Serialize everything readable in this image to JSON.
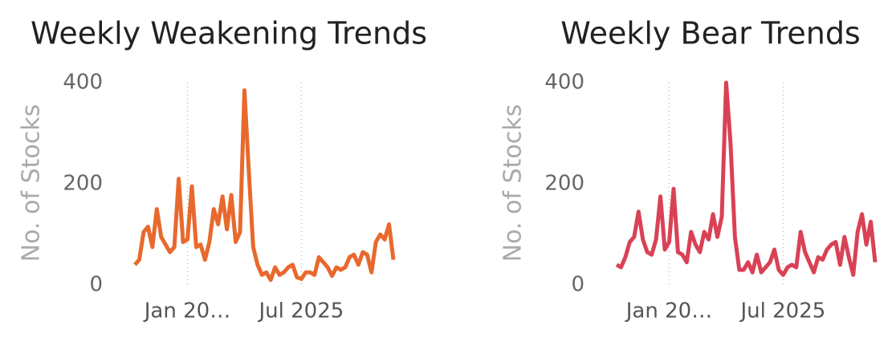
{
  "chart_data": [
    {
      "type": "line",
      "title": "Weekly Weakening Trends",
      "y_label": "No. of Stocks",
      "color": "#e8692d",
      "categories": [
        null,
        null,
        null,
        null,
        null,
        null,
        null,
        null,
        null,
        null,
        null,
        null,
        "Jan 20…",
        null,
        null,
        null,
        null,
        null,
        null,
        null,
        null,
        null,
        null,
        null,
        null,
        null,
        null,
        null,
        null,
        null,
        null,
        null,
        null,
        null,
        null,
        null,
        null,
        null,
        "Jul 2025",
        null,
        null,
        null,
        null,
        null,
        null,
        null,
        null,
        null,
        null,
        null,
        null,
        null,
        null,
        null,
        null,
        null,
        null,
        null,
        null,
        null
      ],
      "values": [
        40,
        50,
        105,
        115,
        75,
        150,
        95,
        80,
        65,
        75,
        210,
        85,
        90,
        195,
        75,
        80,
        50,
        85,
        150,
        120,
        175,
        110,
        178,
        85,
        105,
        385,
        225,
        75,
        40,
        20,
        25,
        10,
        35,
        20,
        25,
        35,
        40,
        15,
        12,
        25,
        25,
        20,
        55,
        45,
        35,
        18,
        35,
        30,
        35,
        55,
        60,
        40,
        65,
        60,
        25,
        85,
        100,
        90,
        120,
        50
      ],
      "ylim": [
        0,
        400
      ],
      "yticks": [
        0,
        200,
        400
      ],
      "xgrid": true
    },
    {
      "type": "line",
      "title": "Weekly Bear Trends",
      "y_label": "No. of Stocks",
      "color": "#d94255",
      "categories": [
        null,
        null,
        null,
        null,
        null,
        null,
        null,
        null,
        null,
        null,
        null,
        null,
        "Jan 20…",
        null,
        null,
        null,
        null,
        null,
        null,
        null,
        null,
        null,
        null,
        null,
        null,
        null,
        null,
        null,
        null,
        null,
        null,
        null,
        null,
        null,
        null,
        null,
        null,
        null,
        "Jul 2025",
        null,
        null,
        null,
        null,
        null,
        null,
        null,
        null,
        null,
        null,
        null,
        null,
        null,
        null,
        null,
        null,
        null,
        null,
        null,
        null,
        null
      ],
      "values": [
        40,
        35,
        55,
        85,
        95,
        145,
        90,
        65,
        60,
        90,
        175,
        70,
        85,
        190,
        65,
        60,
        45,
        105,
        80,
        65,
        105,
        90,
        140,
        95,
        135,
        400,
        280,
        95,
        30,
        30,
        45,
        25,
        60,
        25,
        35,
        45,
        70,
        30,
        20,
        35,
        40,
        35,
        105,
        65,
        45,
        25,
        55,
        50,
        70,
        80,
        85,
        40,
        95,
        55,
        20,
        105,
        140,
        80,
        125,
        45
      ],
      "ylim": [
        0,
        400
      ],
      "yticks": [
        0,
        200,
        400
      ],
      "xgrid": true
    }
  ]
}
